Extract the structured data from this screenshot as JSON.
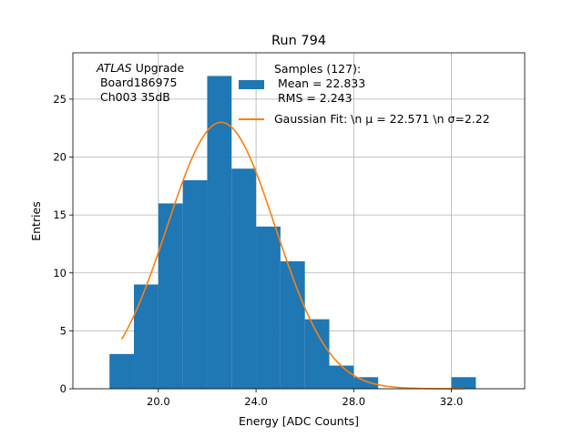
{
  "chart_data": {
    "type": "bar",
    "title": "Run 794",
    "xlabel": "Energy [ADC Counts]",
    "ylabel": "Entries",
    "xlim": [
      16.5,
      35.0
    ],
    "ylim": [
      0,
      29.0
    ],
    "x_ticks": [
      20.0,
      24.0,
      28.0,
      32.0
    ],
    "x_tick_labels": [
      "20.0",
      "24.0",
      "28.0",
      "32.0"
    ],
    "y_ticks": [
      0,
      5,
      10,
      15,
      20,
      25
    ],
    "y_tick_labels": [
      "0",
      "5",
      "10",
      "15",
      "20",
      "25"
    ],
    "grid": true,
    "histogram": {
      "bin_edges": [
        18,
        19,
        20,
        21,
        22,
        23,
        24,
        25,
        26,
        27,
        28,
        29,
        30,
        31,
        32,
        33
      ],
      "counts": [
        3,
        9,
        16,
        18,
        27,
        19,
        14,
        11,
        6,
        2,
        1,
        0,
        0,
        0,
        1
      ],
      "color": "#1f77b4"
    },
    "fit": {
      "mu": 22.571,
      "sigma": 2.22,
      "amplitude": 23.0,
      "x_range": [
        18.5,
        32.5
      ],
      "color": "#ff7f0e"
    },
    "legend": {
      "position": "top-right",
      "histogram_label_lines": [
        "Samples (127):",
        " Mean = 22.833",
        " RMS = 2.243"
      ],
      "fit_label": "Gaussian Fit: \\n μ = 22.571 \\n σ=2.22"
    },
    "annotation": {
      "italic": "ATLAS",
      "lines": [
        " Upgrade",
        " Board186975",
        " Ch003 35dB"
      ]
    }
  }
}
